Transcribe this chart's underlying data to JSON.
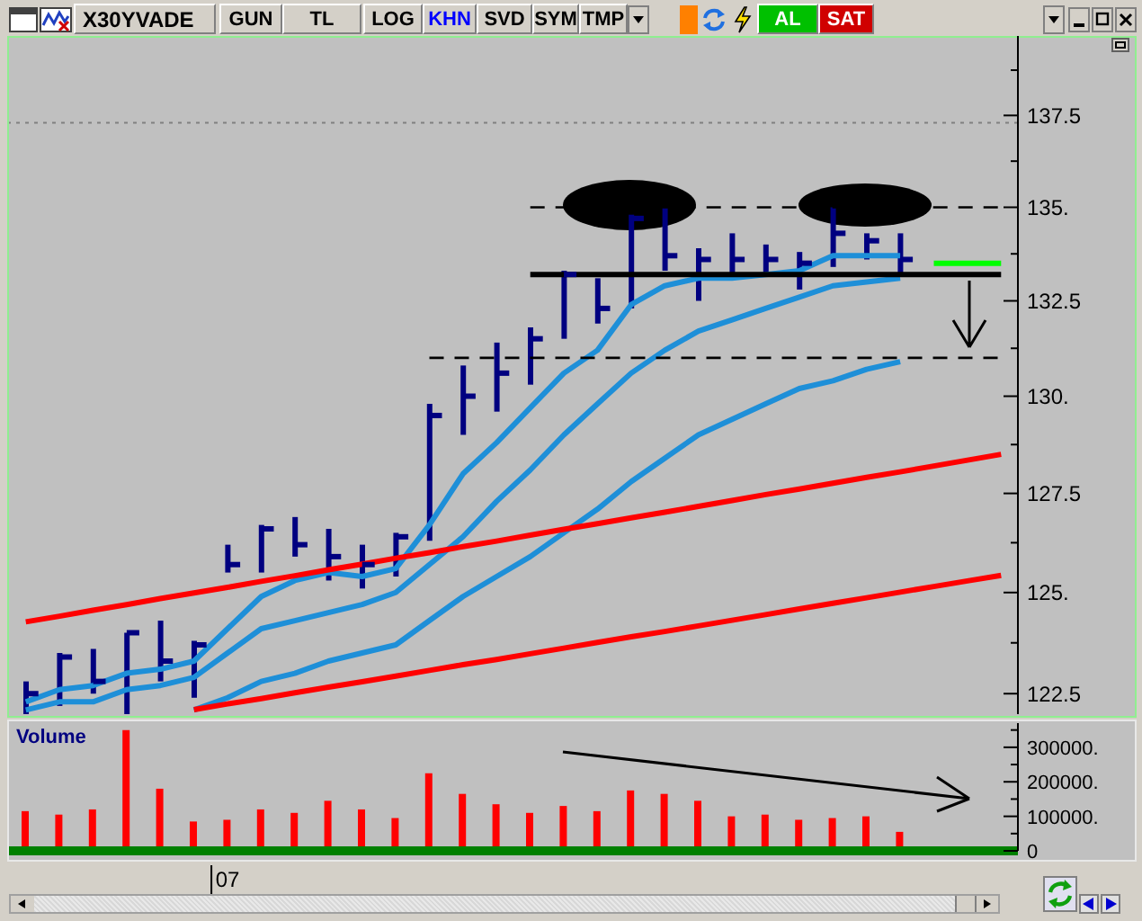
{
  "chart_data": [
    {
      "type": "bar",
      "title": "X30YVADE",
      "annotations": [
        "GUN",
        "TL",
        "LOG",
        "KHN",
        "SVD",
        "SYM",
        "TMP",
        "AL",
        "SAT"
      ],
      "categories": [
        null,
        null,
        null,
        null,
        null,
        null,
        null,
        null,
        null,
        null,
        null,
        null,
        null,
        null,
        null,
        null,
        null,
        null,
        null,
        null,
        null,
        null,
        null,
        null,
        null,
        null,
        null,
        null,
        null,
        null
      ],
      "series": [
        {
          "type": "line",
          "color": "#1e8fd8",
          "values": [
            122.3,
            122.6,
            122.7,
            123.0,
            123.1,
            123.3,
            124.1,
            124.9,
            125.3,
            125.5,
            125.4,
            125.6,
            126.7,
            128.0,
            128.8,
            129.7,
            130.6,
            131.2,
            132.4,
            132.9,
            133.1,
            133.1,
            133.2,
            133.3,
            133.7,
            133.7,
            133.7,
            null,
            null,
            null
          ]
        },
        {
          "type": "line",
          "color": "#1e8fd8",
          "values": [
            122.1,
            122.3,
            122.3,
            122.6,
            122.7,
            122.9,
            123.5,
            124.1,
            124.3,
            124.5,
            124.7,
            125.0,
            125.7,
            126.4,
            127.3,
            128.1,
            129.0,
            129.8,
            130.6,
            131.2,
            131.7,
            132.0,
            132.3,
            132.6,
            132.9,
            133.0,
            133.1,
            null,
            null,
            null
          ]
        },
        {
          "type": "line",
          "color": "#1e8fd8",
          "values": [
            null,
            null,
            null,
            null,
            null,
            122.1,
            122.4,
            122.8,
            123.0,
            123.3,
            123.5,
            123.7,
            124.3,
            124.9,
            125.4,
            125.9,
            126.5,
            127.1,
            127.8,
            128.4,
            129.0,
            129.4,
            129.8,
            130.2,
            130.4,
            130.7,
            130.9,
            null,
            null,
            null
          ]
        },
        {
          "type": "line",
          "color": "#ff0000",
          "values": [
            124.27,
            124.41,
            124.56,
            124.7,
            124.85,
            124.99,
            125.13,
            125.28,
            125.42,
            125.57,
            125.71,
            125.86,
            126.0,
            126.15,
            126.29,
            126.44,
            126.59,
            126.73,
            126.88,
            127.02,
            127.17,
            127.32,
            127.47,
            127.61,
            127.76,
            127.91,
            128.05,
            128.2,
            128.35,
            128.5
          ]
        },
        {
          "type": "line",
          "color": "#ff0000",
          "values": [
            null,
            null,
            null,
            null,
            null,
            122.11,
            122.25,
            122.38,
            122.52,
            122.66,
            122.79,
            122.93,
            123.07,
            123.21,
            123.34,
            123.48,
            123.62,
            123.76,
            123.9,
            124.03,
            124.17,
            124.31,
            124.45,
            124.59,
            124.73,
            124.87,
            125.01,
            125.15,
            125.29,
            125.43
          ]
        },
        {
          "type": "line",
          "color": "#000000",
          "line_style": "dashed",
          "values": [
            null,
            null,
            null,
            null,
            null,
            null,
            null,
            null,
            null,
            null,
            null,
            null,
            null,
            null,
            null,
            135,
            135,
            135,
            135,
            135,
            135,
            135,
            135,
            135,
            135,
            135,
            135,
            135,
            135,
            135
          ]
        },
        {
          "type": "line",
          "color": "#000000",
          "line_style": "dashed",
          "values": [
            null,
            null,
            null,
            null,
            null,
            null,
            null,
            null,
            null,
            null,
            null,
            null,
            131,
            131,
            131,
            131,
            131,
            131,
            131,
            131,
            131,
            131,
            131,
            131,
            131,
            131,
            131,
            131,
            131,
            131
          ]
        },
        {
          "type": "line",
          "color": "#000000",
          "values": [
            null,
            null,
            null,
            null,
            null,
            null,
            null,
            null,
            null,
            null,
            null,
            null,
            null,
            null,
            null,
            133.2,
            133.2,
            133.2,
            133.2,
            133.2,
            133.2,
            133.2,
            133.2,
            133.2,
            133.2,
            133.2,
            133.2,
            133.2,
            133.2,
            133.2
          ]
        },
        {
          "type": "line",
          "color": "#00ff00",
          "values": [
            null,
            null,
            null,
            null,
            null,
            null,
            null,
            null,
            null,
            null,
            null,
            null,
            null,
            null,
            null,
            null,
            null,
            null,
            null,
            null,
            null,
            null,
            null,
            null,
            null,
            null,
            null,
            133.5,
            133.5,
            133.5
          ]
        },
        {
          "type": "bar",
          "color": "#000080",
          "base": [
            122,
            122.2,
            122.5,
            122,
            122.8,
            122.4,
            125.5,
            125.5,
            125.9,
            125.3,
            125.1,
            125.4,
            126.3,
            129.0,
            129.6,
            130.3,
            131.5,
            131.9,
            132.3,
            133.3,
            132.5,
            133.2,
            133.2,
            132.8,
            133.4,
            133.6,
            133.2,
            null,
            null,
            null
          ],
          "values": [
            0.8,
            1.3,
            1.1,
            2.0,
            1.5,
            1.4,
            0.7,
            1.2,
            1.0,
            1.3,
            1.1,
            1.1,
            3.5,
            1.8,
            1.8,
            1.5,
            1.8,
            1.2,
            2.5,
            1.7,
            1.4,
            1.1,
            0.8,
            1.0,
            1.6,
            0.7,
            1.1,
            null,
            null,
            null
          ]
        },
        {
          "type": "scatter",
          "color": "#000080",
          "values": [
            122.5,
            123.4,
            122.8,
            124.0,
            123.3,
            123.7,
            125.7,
            126.6,
            126.2,
            125.9,
            125.7,
            126.4,
            129.5,
            130.0,
            130.6,
            131.5,
            133.2,
            132.3,
            134.7,
            133.7,
            133.6,
            133.6,
            133.6,
            133.5,
            134.3,
            134.1,
            133.6,
            null,
            null,
            null
          ]
        }
      ],
      "ylim": [
        122,
        139.7
      ],
      "log": true,
      "yticks": [
        122.5,
        {
          "value": 123.75,
          "label": null
        },
        {
          "value": 125,
          "label": "125."
        },
        {
          "value": 126.25,
          "label": null
        },
        127.5,
        {
          "value": 128.75,
          "label": null
        },
        {
          "value": 130,
          "label": "130."
        },
        {
          "value": 131.25,
          "label": null
        },
        132.5,
        {
          "value": 133.75,
          "label": null
        },
        {
          "value": 135,
          "label": "135."
        },
        {
          "value": 136.25,
          "label": null
        },
        137.5,
        {
          "value": 138.75,
          "label": null
        }
      ],
      "ref_lines": [
        {
          "axis": "y",
          "value": 137.3,
          "color": "#808080",
          "line_style": "dotted"
        }
      ],
      "tick_labels": "y"
    },
    {
      "type": "bar",
      "title": "Volume",
      "categories": [
        null,
        null,
        null,
        null,
        null,
        null,
        "07",
        null,
        null,
        null,
        null,
        null,
        null,
        null,
        null,
        null,
        null,
        null,
        null,
        null,
        null,
        null,
        null,
        null,
        null,
        null,
        null,
        null,
        null,
        null
      ],
      "values": [
        115000,
        105000,
        120000,
        350000,
        180000,
        85000,
        90000,
        120000,
        110000,
        145000,
        120000,
        95000,
        225000,
        165000,
        135000,
        110000,
        130000,
        115000,
        175000,
        165000,
        145000,
        100000,
        105000,
        90000,
        95000,
        100000,
        55000,
        null,
        null,
        null
      ],
      "color": "#ff0000",
      "ylim": [
        0,
        370000
      ],
      "yticks": [
        0,
        {
          "value": 50000,
          "label": null
        },
        {
          "value": 100000,
          "label": "100000."
        },
        {
          "value": 150000,
          "label": null
        },
        {
          "value": 200000,
          "label": "200000."
        },
        {
          "value": 250000,
          "label": null
        },
        {
          "value": 300000,
          "label": "300000."
        },
        {
          "value": 350000,
          "label": null
        }
      ]
    }
  ]
}
